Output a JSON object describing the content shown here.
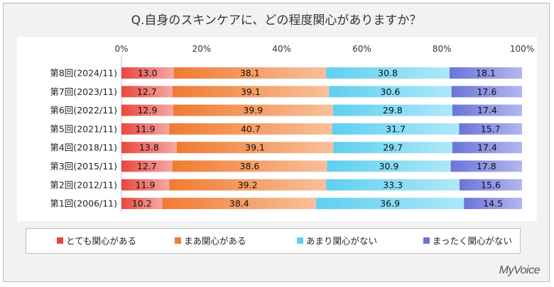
{
  "chart_data": {
    "type": "bar",
    "orientation": "horizontal",
    "stacked": true,
    "percent_stacked": true,
    "title": "Q.自身のスキンケアに、どの程度関心がありますか？",
    "categories": [
      "第8回(2024/11)",
      "第7回(2023/11)",
      "第6回(2022/11)",
      "第5回(2021/11)",
      "第4回(2018/11)",
      "第3回(2015/11)",
      "第2回(2012/11)",
      "第1回(2006/11)"
    ],
    "series": [
      {
        "name": "とても関心がある",
        "color": "#e8473e",
        "values": [
          13.0,
          12.7,
          12.9,
          11.9,
          13.8,
          12.7,
          11.9,
          10.2
        ]
      },
      {
        "name": "まあ関心がある",
        "color": "#f07b32",
        "values": [
          38.1,
          39.1,
          39.9,
          40.7,
          39.1,
          38.6,
          39.2,
          38.4
        ]
      },
      {
        "name": "あまり関心がない",
        "color": "#5fcff0",
        "values": [
          30.8,
          30.6,
          29.8,
          31.7,
          29.7,
          30.9,
          33.3,
          36.9
        ]
      },
      {
        "name": "まったく関心がない",
        "color": "#6b74d8",
        "values": [
          18.1,
          17.6,
          17.4,
          15.7,
          17.4,
          17.8,
          15.6,
          14.5
        ]
      }
    ],
    "value_labels": [
      [
        "13.0",
        "12.7",
        "12.9",
        "11.9",
        "13.8",
        "12.7",
        "11.9",
        "10.2"
      ],
      [
        "38.1",
        "39.1",
        "39.9",
        "40.7",
        "39.1",
        "38.6",
        "39.2",
        "38.4"
      ],
      [
        "30.8",
        "30.6",
        "29.8",
        "31.7",
        "29.7",
        "30.9",
        "33.3",
        "36.9"
      ],
      [
        "18.1",
        "17.6",
        "17.4",
        "15.7",
        "17.4",
        "17.8",
        "15.6",
        "14.5"
      ]
    ],
    "xticks": [
      "0%",
      "20%",
      "40%",
      "60%",
      "80%",
      "100%"
    ],
    "xlim": [
      0,
      100
    ],
    "xlabel": "",
    "ylabel": "",
    "grid": false,
    "legend_position": "bottom"
  },
  "brand": "MyVoice"
}
